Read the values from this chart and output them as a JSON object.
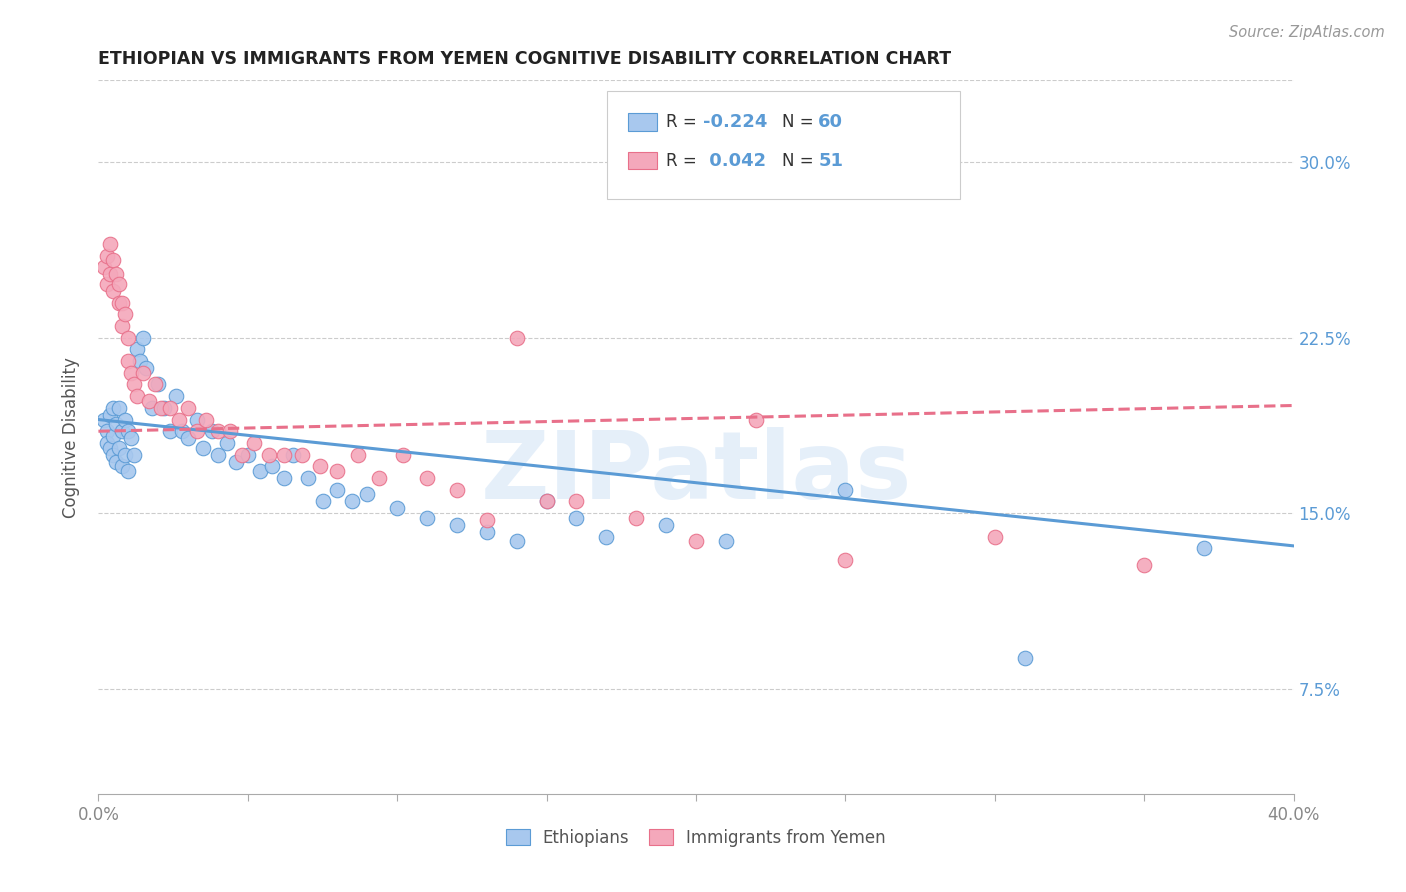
{
  "title": "ETHIOPIAN VS IMMIGRANTS FROM YEMEN COGNITIVE DISABILITY CORRELATION CHART",
  "source": "Source: ZipAtlas.com",
  "ylabel": "Cognitive Disability",
  "yticks": [
    "7.5%",
    "15.0%",
    "22.5%",
    "30.0%"
  ],
  "ytick_vals": [
    0.075,
    0.15,
    0.225,
    0.3
  ],
  "xlim": [
    0.0,
    0.4
  ],
  "ylim": [
    0.03,
    0.335
  ],
  "r_ethiopian": -0.224,
  "n_ethiopian": 60,
  "r_yemen": 0.042,
  "n_yemen": 51,
  "color_ethiopian": "#A8C8EE",
  "color_yemen": "#F4A8BB",
  "color_line_ethiopian": "#5B9BD5",
  "color_line_yemen": "#E8708A",
  "watermark": "ZIPatlas",
  "legend_labels": [
    "Ethiopians",
    "Immigrants from Yemen"
  ],
  "eth_line": [
    0.0,
    0.4,
    0.19,
    0.136
  ],
  "yem_line": [
    0.0,
    0.4,
    0.185,
    0.196
  ],
  "ethiopian_x": [
    0.002,
    0.003,
    0.003,
    0.004,
    0.004,
    0.005,
    0.005,
    0.005,
    0.006,
    0.006,
    0.007,
    0.007,
    0.008,
    0.008,
    0.009,
    0.009,
    0.01,
    0.01,
    0.011,
    0.012,
    0.013,
    0.014,
    0.015,
    0.016,
    0.018,
    0.02,
    0.022,
    0.024,
    0.026,
    0.028,
    0.03,
    0.033,
    0.035,
    0.038,
    0.04,
    0.043,
    0.046,
    0.05,
    0.054,
    0.058,
    0.062,
    0.065,
    0.07,
    0.075,
    0.08,
    0.085,
    0.09,
    0.1,
    0.11,
    0.12,
    0.13,
    0.14,
    0.15,
    0.16,
    0.17,
    0.19,
    0.21,
    0.25,
    0.31,
    0.37
  ],
  "ethiopian_y": [
    0.19,
    0.185,
    0.18,
    0.192,
    0.178,
    0.195,
    0.183,
    0.175,
    0.188,
    0.172,
    0.195,
    0.178,
    0.185,
    0.17,
    0.19,
    0.175,
    0.185,
    0.168,
    0.182,
    0.175,
    0.22,
    0.215,
    0.225,
    0.212,
    0.195,
    0.205,
    0.195,
    0.185,
    0.2,
    0.185,
    0.182,
    0.19,
    0.178,
    0.185,
    0.175,
    0.18,
    0.172,
    0.175,
    0.168,
    0.17,
    0.165,
    0.175,
    0.165,
    0.155,
    0.16,
    0.155,
    0.158,
    0.152,
    0.148,
    0.145,
    0.142,
    0.138,
    0.155,
    0.148,
    0.14,
    0.145,
    0.138,
    0.16,
    0.088,
    0.135
  ],
  "yemen_x": [
    0.002,
    0.003,
    0.003,
    0.004,
    0.004,
    0.005,
    0.005,
    0.006,
    0.007,
    0.007,
    0.008,
    0.008,
    0.009,
    0.01,
    0.01,
    0.011,
    0.012,
    0.013,
    0.015,
    0.017,
    0.019,
    0.021,
    0.024,
    0.027,
    0.03,
    0.033,
    0.036,
    0.04,
    0.044,
    0.048,
    0.052,
    0.057,
    0.062,
    0.068,
    0.074,
    0.08,
    0.087,
    0.094,
    0.102,
    0.11,
    0.12,
    0.13,
    0.14,
    0.15,
    0.16,
    0.18,
    0.2,
    0.22,
    0.25,
    0.3,
    0.35
  ],
  "yemen_y": [
    0.255,
    0.26,
    0.248,
    0.265,
    0.252,
    0.258,
    0.245,
    0.252,
    0.248,
    0.24,
    0.24,
    0.23,
    0.235,
    0.225,
    0.215,
    0.21,
    0.205,
    0.2,
    0.21,
    0.198,
    0.205,
    0.195,
    0.195,
    0.19,
    0.195,
    0.185,
    0.19,
    0.185,
    0.185,
    0.175,
    0.18,
    0.175,
    0.175,
    0.175,
    0.17,
    0.168,
    0.175,
    0.165,
    0.175,
    0.165,
    0.16,
    0.147,
    0.225,
    0.155,
    0.155,
    0.148,
    0.138,
    0.19,
    0.13,
    0.14,
    0.128
  ]
}
